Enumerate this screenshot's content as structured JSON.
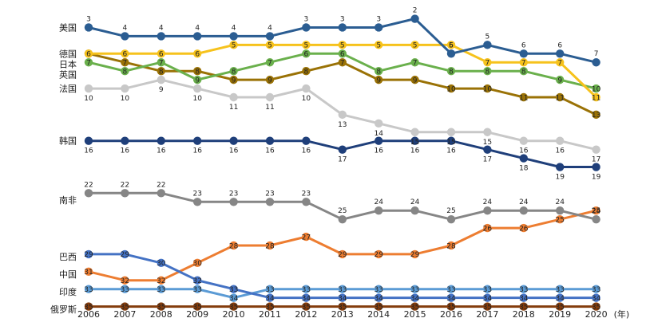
{
  "chart_data": {
    "type": "line",
    "x": [
      "2006",
      "2007",
      "2008",
      "2009",
      "2010",
      "2011",
      "2012",
      "2013",
      "2014",
      "2015",
      "2016",
      "2017",
      "2018",
      "2019",
      "2020"
    ],
    "x_unit": "(年)",
    "y_reversed": true,
    "ylim": [
      1,
      36
    ],
    "grid": false,
    "series": [
      {
        "name": "美国",
        "color": "#2b5d92",
        "values": [
          3,
          4,
          4,
          4,
          4,
          4,
          3,
          3,
          3,
          2,
          6,
          5,
          6,
          6,
          7
        ]
      },
      {
        "name": "德国",
        "color": "#f6c21c",
        "values": [
          6,
          6,
          6,
          6,
          5,
          5,
          5,
          5,
          5,
          5,
          5,
          7,
          7,
          7,
          11
        ]
      },
      {
        "name": "日本",
        "color": "#6ab04c",
        "values": [
          7,
          8,
          7,
          9,
          8,
          7,
          6,
          6,
          8,
          7,
          8,
          8,
          8,
          9,
          10
        ]
      },
      {
        "name": "英国",
        "color": "#9a7206",
        "values": [
          6,
          7,
          8,
          8,
          9,
          9,
          8,
          7,
          9,
          9,
          10,
          10,
          11,
          11,
          13
        ]
      },
      {
        "name": "法国",
        "color": "#c8c8c8",
        "values": [
          10,
          10,
          9,
          10,
          11,
          11,
          10,
          13,
          14,
          15,
          15,
          15,
          16,
          16,
          17
        ]
      },
      {
        "name": "韩国",
        "color": "#1f3f7a",
        "values": [
          16,
          16,
          16,
          16,
          16,
          16,
          16,
          17,
          16,
          16,
          16,
          17,
          18,
          19,
          19
        ]
      },
      {
        "name": "南非",
        "color": "#868686",
        "values": [
          22,
          22,
          22,
          23,
          23,
          23,
          23,
          25,
          24,
          24,
          25,
          24,
          24,
          24,
          25
        ]
      },
      {
        "name": "巴西",
        "color": "#4472c4",
        "values": [
          29,
          29,
          30,
          32,
          33,
          34,
          34,
          34,
          34,
          34,
          34,
          34,
          34,
          34,
          34
        ]
      },
      {
        "name": "中国",
        "color": "#ed7d31",
        "values": [
          31,
          32,
          32,
          30,
          28,
          28,
          27,
          29,
          29,
          29,
          28,
          26,
          26,
          25,
          24
        ]
      },
      {
        "name": "印度",
        "color": "#5b9bd5",
        "values": [
          33,
          33,
          33,
          33,
          34,
          33,
          33,
          33,
          33,
          33,
          33,
          33,
          33,
          33,
          33
        ]
      },
      {
        "name": "俄罗斯",
        "color": "#843c0c",
        "values": [
          35,
          35,
          35,
          35,
          35,
          35,
          35,
          35,
          35,
          35,
          35,
          35,
          35,
          35,
          35
        ]
      }
    ],
    "label_offsets": {
      "美国": "up",
      "德国": "in",
      "日本": "in",
      "英国": "in",
      "法国": "down",
      "韩国": "down",
      "南非": "up",
      "巴西": "in",
      "中国": "in",
      "印度": "in",
      "俄罗斯": "in"
    }
  }
}
